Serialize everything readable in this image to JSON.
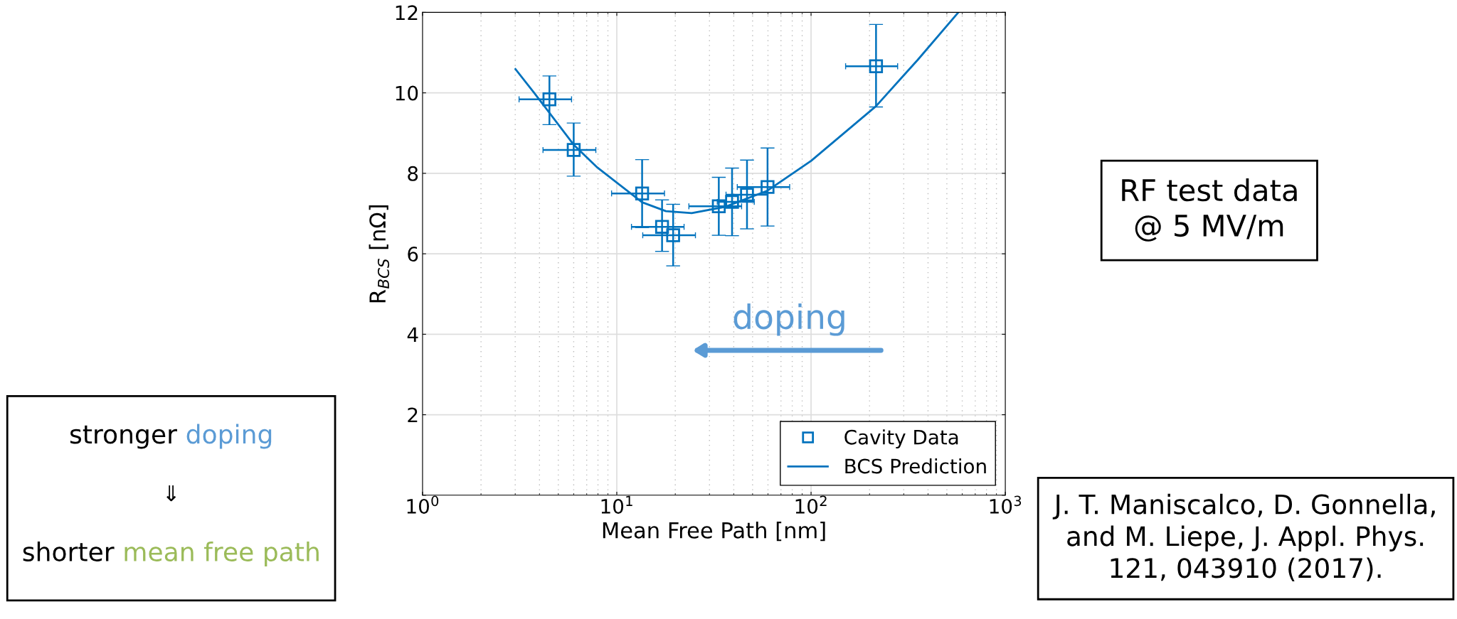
{
  "chart_data": {
    "type": "scatter",
    "xlabel": "Mean Free Path [nm]",
    "ylabel": "R$_{BCS}$ [nΩ]",
    "log": "x",
    "xlim": [
      1,
      1000
    ],
    "ylim": [
      0,
      12
    ],
    "xticks": [
      {
        "value": 1,
        "label": "10$^{0}$"
      },
      {
        "value": 10,
        "label": "10$^{1}$"
      },
      {
        "value": 100,
        "label": "10$^{2}$"
      },
      {
        "value": 1000,
        "label": "10$^{3}$"
      }
    ],
    "yticks": [
      {
        "value": 0,
        "label": null
      },
      2,
      4,
      6,
      8,
      10,
      12
    ],
    "grid": true,
    "legend": "bottom right",
    "series": [
      {
        "name": "Cavity Data",
        "color": "#0072bd",
        "marker": "square",
        "x": [
          4.5,
          6.0,
          13.5,
          17.1,
          19.5,
          33.5,
          39.2,
          46.8,
          59.7,
          216
        ],
        "values": [
          9.84,
          8.58,
          7.5,
          6.67,
          6.46,
          7.18,
          7.29,
          7.47,
          7.66,
          10.66
        ],
        "errors": [
          [
            9.21,
            10.42
          ],
          [
            7.93,
            9.25
          ],
          [
            6.65,
            8.34
          ],
          [
            6.06,
            7.34
          ],
          [
            5.7,
            7.23
          ],
          [
            6.46,
            7.9
          ],
          [
            6.45,
            8.13
          ],
          [
            6.62,
            8.33
          ],
          [
            6.69,
            8.63
          ],
          [
            9.65,
            11.7
          ]
        ],
        "xerrors": [
          [
            3.14,
            5.85
          ],
          [
            4.17,
            7.8
          ],
          [
            9.4,
            17.6
          ],
          [
            11.9,
            22.2
          ],
          [
            13.6,
            25.4
          ],
          [
            23.5,
            43.9
          ],
          [
            32.9,
            51.0
          ],
          [
            36.5,
            60.0
          ],
          [
            41.7,
            77.6
          ],
          [
            150.6,
            279
          ]
        ]
      },
      {
        "name": "BCS Prediction",
        "type": "line",
        "color": "#0072bd",
        "marker": "none",
        "line_style": "solid",
        "x": [
          3.01,
          3.73,
          6.0,
          7.96,
          13.5,
          17.9,
          24.3,
          36.3,
          59.7,
          100,
          216,
          354,
          573
        ],
        "values": [
          10.59,
          10.02,
          8.71,
          8.14,
          7.28,
          7.06,
          7.01,
          7.17,
          7.57,
          8.31,
          9.67,
          10.82,
          12.0
        ]
      }
    ],
    "annotations": [
      "doping",
      "RF test data\n@ 5 MV/m",
      "stronger",
      "doping",
      "⇓",
      "shorter",
      "mean free path",
      "J. T. Maniscalco, D. Gonnella,\nand M. Liepe, J. Appl. Phys.\n121, 043910 (2017)."
    ]
  }
}
